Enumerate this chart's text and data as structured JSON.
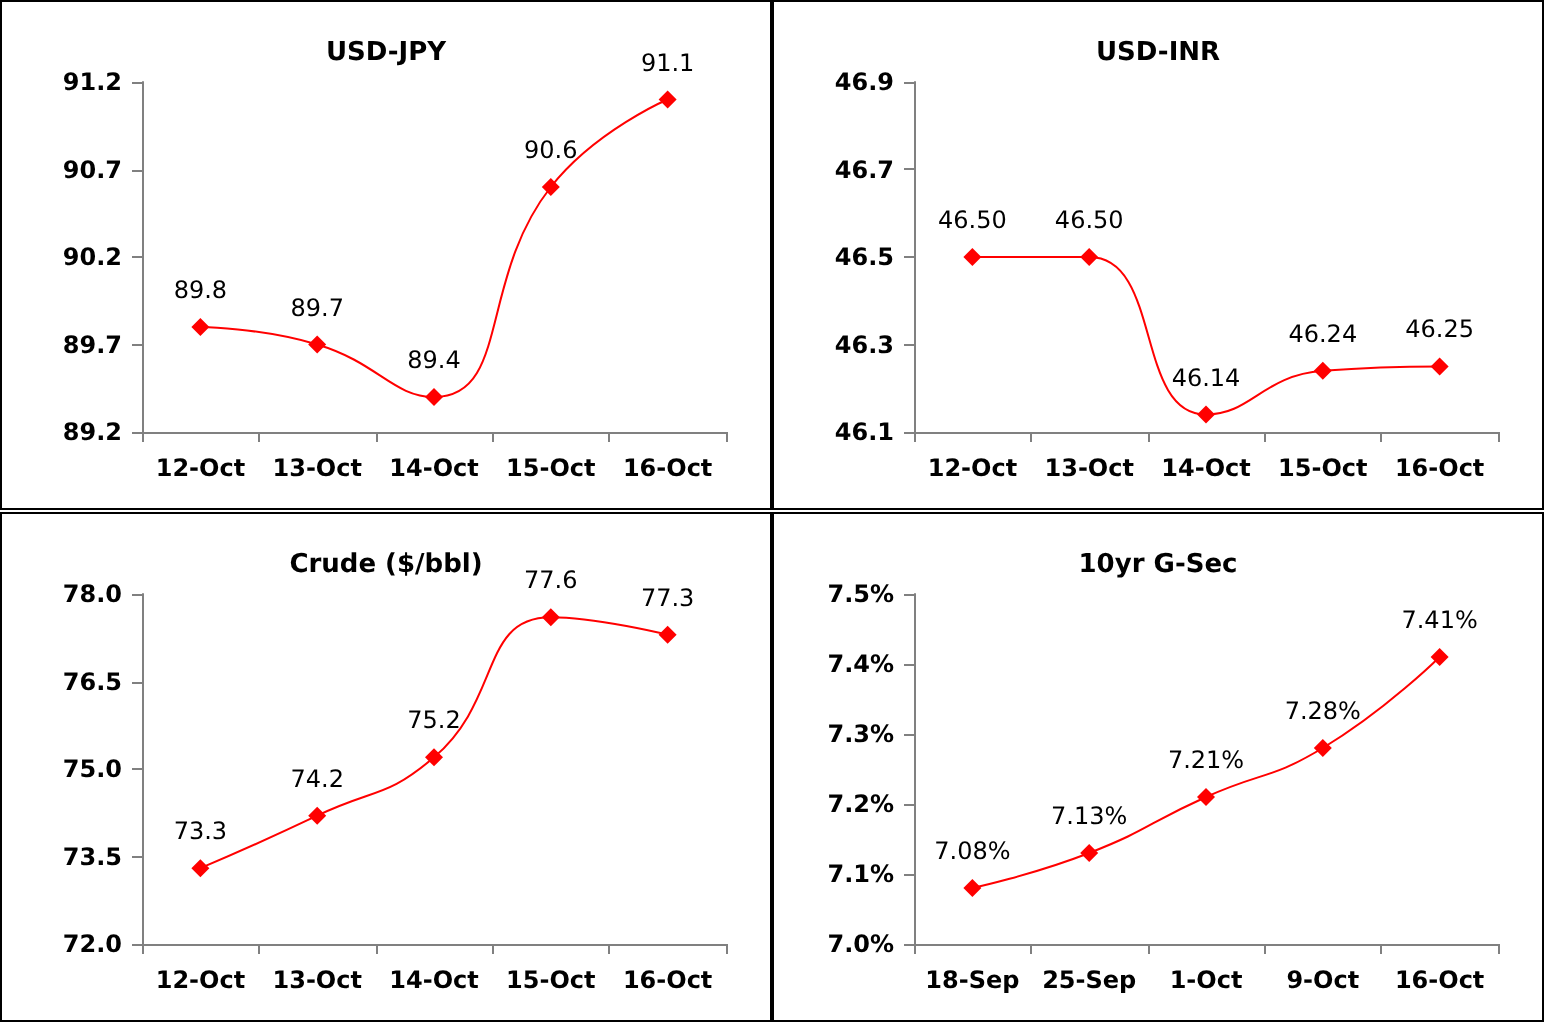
{
  "chart_data": [
    {
      "type": "line",
      "title": "USD-JPY",
      "categories": [
        "12-Oct",
        "13-Oct",
        "14-Oct",
        "15-Oct",
        "16-Oct"
      ],
      "values": [
        89.8,
        89.7,
        89.4,
        90.6,
        91.1
      ],
      "color": "#ff0000",
      "ylim": [
        89.2,
        91.2
      ],
      "yticks": [
        89.2,
        89.7,
        90.2,
        90.7,
        91.2
      ],
      "data_labels": true,
      "marker": "diamond",
      "grid": false
    },
    {
      "type": "line",
      "title": "USD-INR",
      "categories": [
        "12-Oct",
        "13-Oct",
        "14-Oct",
        "15-Oct",
        "16-Oct"
      ],
      "values": [
        46.5,
        46.5,
        46.14,
        46.24,
        46.25
      ],
      "value_labels": [
        "46.50",
        "46.50",
        "46.14",
        "46.24",
        "46.25"
      ],
      "color": "#ff0000",
      "ylim": [
        46.1,
        46.9
      ],
      "yticks": [
        46.1,
        46.3,
        46.5,
        46.7,
        46.9
      ],
      "marker": "diamond",
      "grid": false
    },
    {
      "type": "line",
      "title": "Crude ($/bbl)",
      "categories": [
        "12-Oct",
        "13-Oct",
        "14-Oct",
        "15-Oct",
        "16-Oct"
      ],
      "values": [
        73.3,
        74.2,
        75.2,
        77.6,
        77.3
      ],
      "color": "#ff0000",
      "ylim": [
        72.0,
        78.0
      ],
      "yticks": [
        {
          "value": 72,
          "label": "72.0"
        },
        {
          "value": 73.5,
          "label": "73.5"
        },
        {
          "value": 75,
          "label": "75.0"
        },
        {
          "value": 76.5,
          "label": "76.5"
        },
        {
          "value": 78,
          "label": "78.0"
        }
      ],
      "data_labels": true,
      "marker": "diamond",
      "grid": false
    },
    {
      "type": "line",
      "title": "10yr G-Sec",
      "categories": [
        "18-Sep",
        "25-Sep",
        "1-Oct",
        "9-Oct",
        "16-Oct"
      ],
      "values": [
        7.08,
        7.13,
        7.21,
        7.28,
        7.41
      ],
      "value_labels": [
        "7.08%",
        "7.13%",
        "7.21%",
        "7.28%",
        "7.41%"
      ],
      "color": "#ff0000",
      "ylim": [
        7.0,
        7.5
      ],
      "yticks": [
        {
          "value": 7.0,
          "label": "7.0%"
        },
        {
          "value": 7.1,
          "label": "7.1%"
        },
        {
          "value": 7.2,
          "label": "7.2%"
        },
        {
          "value": 7.3,
          "label": "7.3%"
        },
        {
          "value": 7.4,
          "label": "7.4%"
        },
        {
          "value": 7.5,
          "label": "7.5%"
        }
      ],
      "marker": "diamond",
      "grid": false
    }
  ]
}
